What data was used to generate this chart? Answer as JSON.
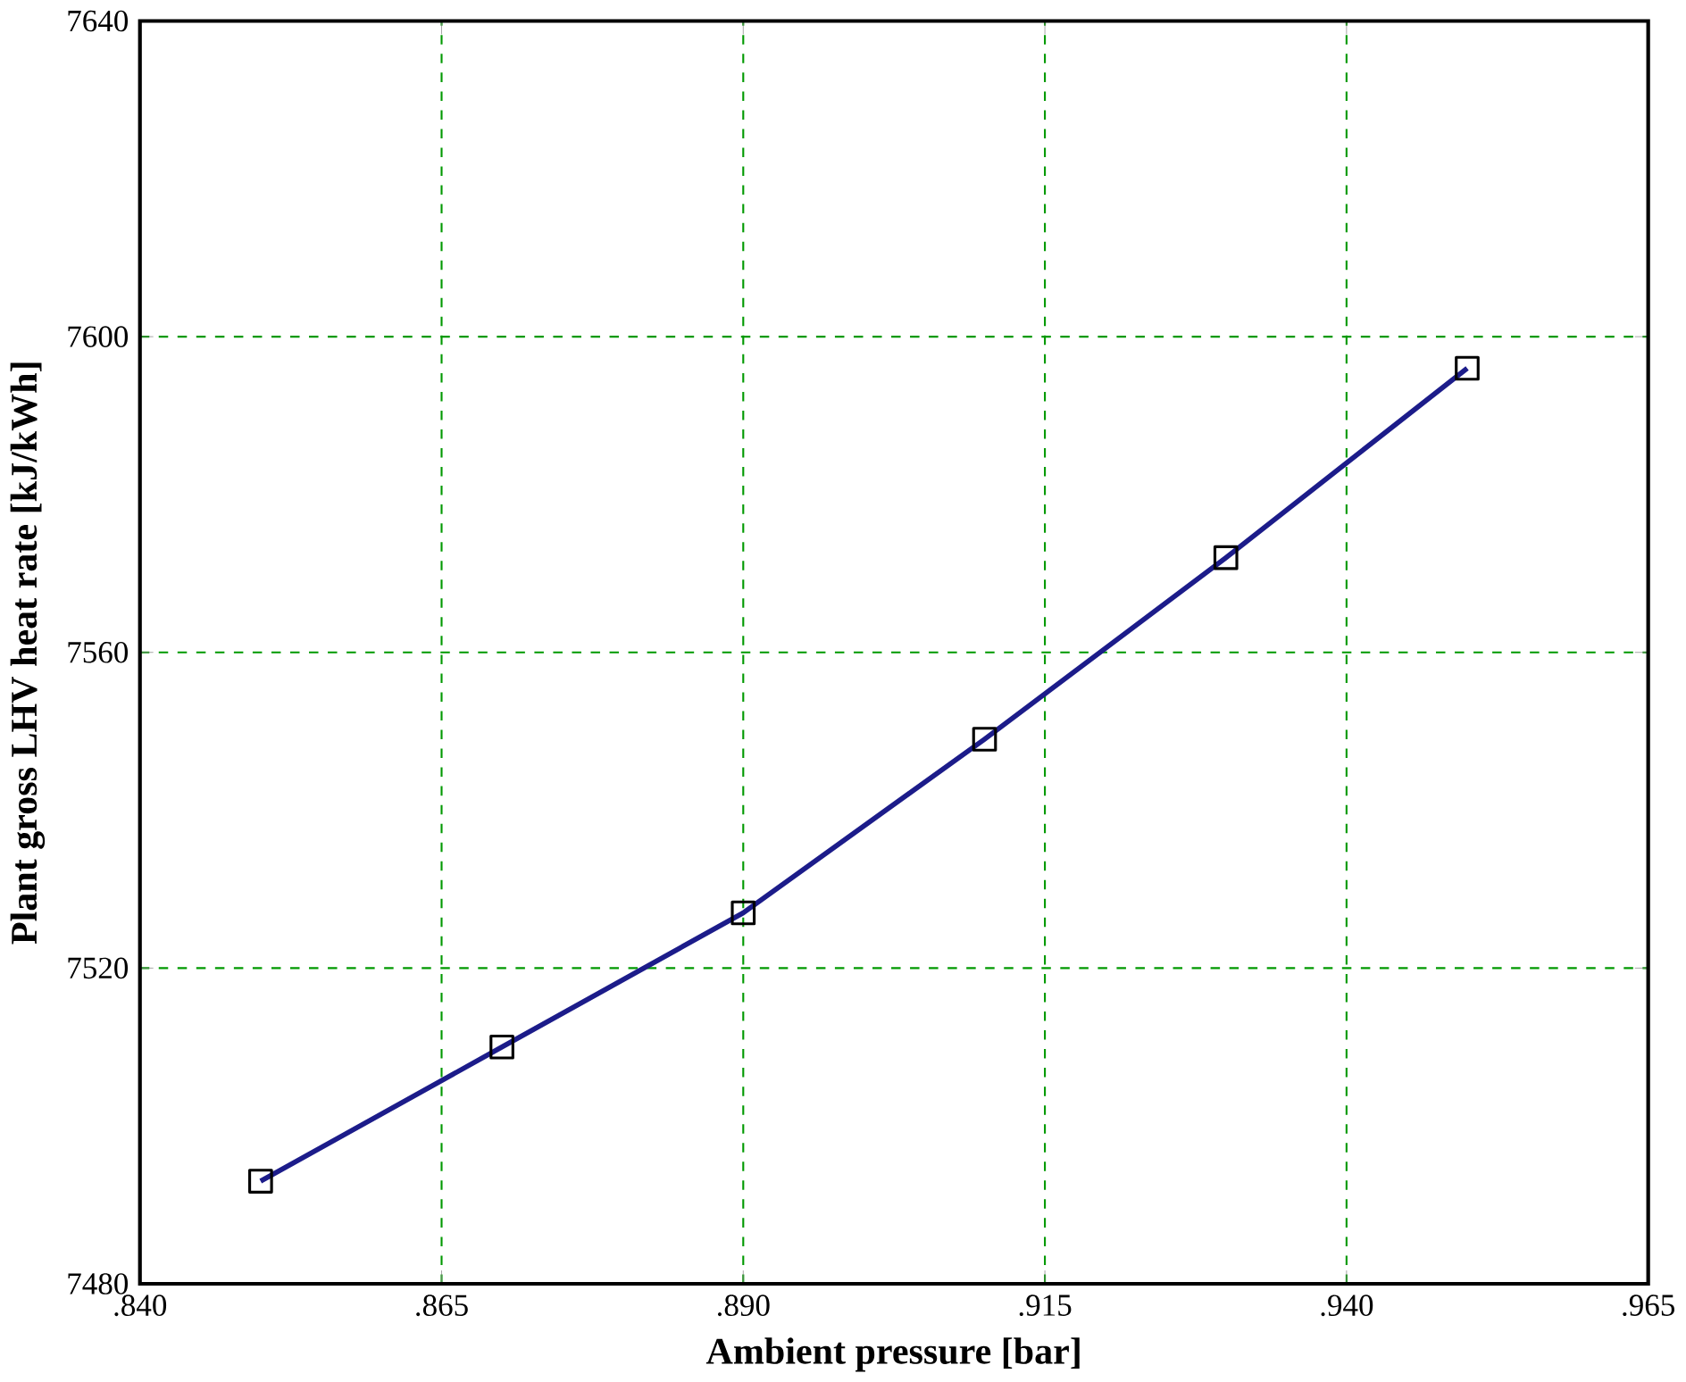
{
  "chart_data": {
    "type": "line",
    "xlabel": "Ambient pressure [bar]",
    "ylabel": "Plant gross LHV heat rate [kJ/kWh]",
    "x": [
      0.85,
      0.87,
      0.89,
      0.91,
      0.93,
      0.95
    ],
    "series": [
      {
        "color": "#1c1c8a",
        "values": [
          7493,
          7510,
          7527,
          7549,
          7572,
          7596
        ]
      }
    ],
    "xlim": [
      0.84,
      0.965
    ],
    "ylim": [
      7480,
      7640
    ],
    "xticks": [
      {
        "value": 0.84,
        "label": ".840"
      },
      {
        "value": 0.865,
        "label": ".865"
      },
      {
        "value": 0.89,
        "label": ".890"
      },
      {
        "value": 0.915,
        "label": ".915"
      },
      {
        "value": 0.94,
        "label": ".940"
      },
      {
        "value": 0.965,
        "label": ".965"
      }
    ],
    "yticks": [
      7480,
      7520,
      7560,
      7600,
      7640
    ],
    "grid": true,
    "marker": "square",
    "line_style": "solid"
  }
}
